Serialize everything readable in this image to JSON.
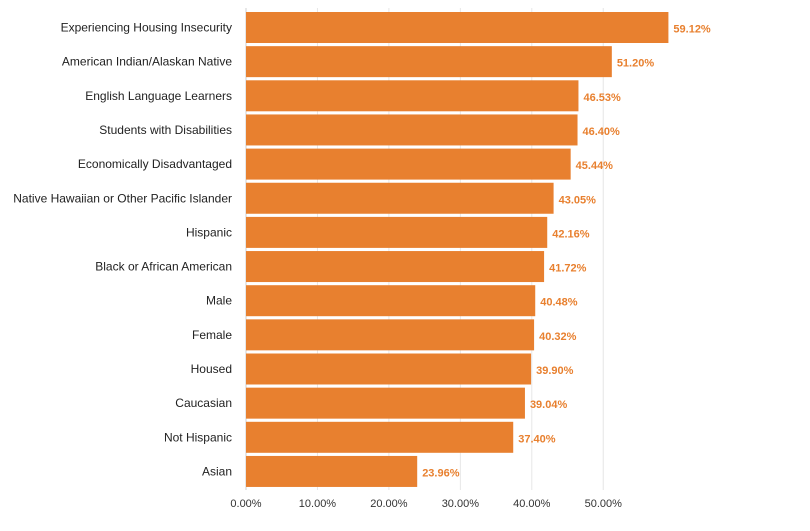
{
  "chart_data": {
    "type": "bar",
    "orientation": "horizontal",
    "title": "",
    "xlabel": "",
    "ylabel": "",
    "categories": [
      "Experiencing Housing Insecurity",
      "American Indian/Alaskan Native",
      "English Language Learners",
      "Students with Disabilities",
      "Economically Disadvantaged",
      "Native Hawaiian or Other Pacific Islander",
      "Hispanic",
      "Black or African American",
      "Male",
      "Female",
      "Housed",
      "Caucasian",
      "Not Hispanic",
      "Asian"
    ],
    "values": [
      59.12,
      51.2,
      46.53,
      46.4,
      45.44,
      43.05,
      42.16,
      41.72,
      40.48,
      40.32,
      39.9,
      39.04,
      37.4,
      23.96
    ],
    "value_labels": [
      "59.12%",
      "51.20%",
      "46.53%",
      "46.40%",
      "45.44%",
      "43.05%",
      "42.16%",
      "41.72%",
      "40.48%",
      "40.32%",
      "39.90%",
      "39.04%",
      "37.40%",
      "23.96%"
    ],
    "xlim": [
      0,
      60
    ],
    "xticks": [
      0,
      10,
      20,
      30,
      40,
      50
    ],
    "xtick_labels": [
      "0.00%",
      "10.00%",
      "20.00%",
      "30.00%",
      "40.00%",
      "50.00%"
    ],
    "grid": true,
    "legend": "none",
    "colors": {
      "bar": "#E8802F",
      "value_label": "#E8802F"
    }
  }
}
